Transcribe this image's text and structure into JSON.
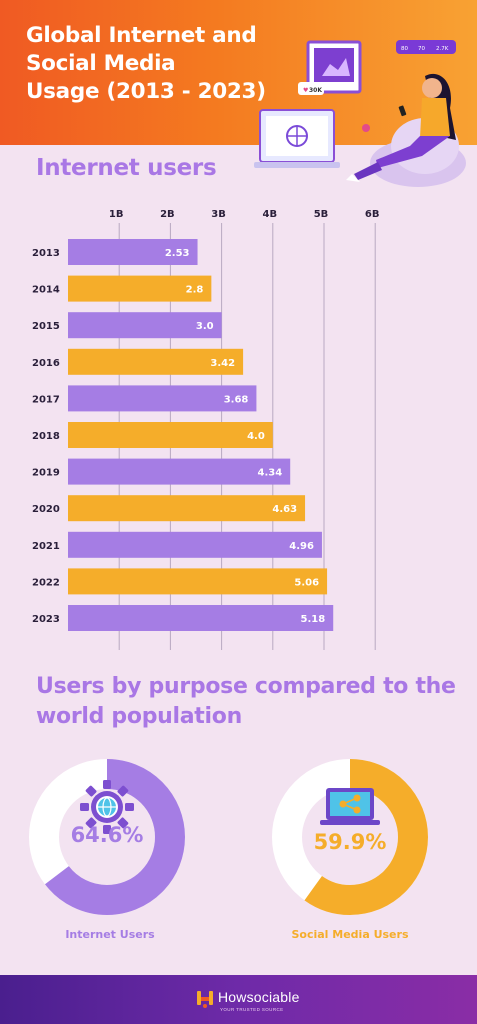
{
  "header": {
    "title": "Global Internet and\nSocial Media\nUsage (2013 - 2023)"
  },
  "illustration": {
    "badge_likes": "30K",
    "stat_1": "80",
    "stat_2": "70",
    "stat_3": "2.7K"
  },
  "section_internet": {
    "title": "Internet users"
  },
  "section_purpose": {
    "title": "Users by purpose compared to the world population"
  },
  "chart_data": {
    "type": "bar",
    "orientation": "horizontal",
    "title": "Internet users",
    "categories": [
      "2013",
      "2014",
      "2015",
      "2016",
      "2017",
      "2018",
      "2019",
      "2020",
      "2021",
      "2022",
      "2023"
    ],
    "values": [
      2.53,
      2.8,
      3.0,
      3.42,
      3.68,
      4.0,
      4.34,
      4.63,
      4.96,
      5.06,
      5.18
    ],
    "value_labels": [
      "2.53",
      "2.8",
      "3.0",
      "3.42",
      "3.68",
      "4.0",
      "4.34",
      "4.63",
      "4.96",
      "5.06",
      "5.18"
    ],
    "x_ticks": [
      1,
      2,
      3,
      4,
      5,
      6
    ],
    "x_tick_labels": [
      "1B",
      "2B",
      "3B",
      "4B",
      "5B",
      "6B"
    ],
    "xlim": [
      0,
      6
    ],
    "grid": true,
    "xaxis_position": "top",
    "colors": [
      "#a57de4",
      "#f5ad2a"
    ]
  },
  "donuts": [
    {
      "label": "Internet Users",
      "value_text": "64.6%",
      "percent": 64.6,
      "color": "#a57de4",
      "icon": "globe-gear-icon"
    },
    {
      "label": "Social Media Users",
      "value_text": "59.9%",
      "percent": 59.9,
      "color": "#f5ad2a",
      "icon": "laptop-share-icon"
    }
  ],
  "footer": {
    "brand": "Howsociable",
    "tagline": "YOUR TRUSTED SOURCE"
  },
  "colors": {
    "purple": "#a57de4",
    "orange": "#f5ad2a",
    "background": "#f3e3f1",
    "header_orange": "#f47a20",
    "footer_purple": "#5a2399"
  }
}
